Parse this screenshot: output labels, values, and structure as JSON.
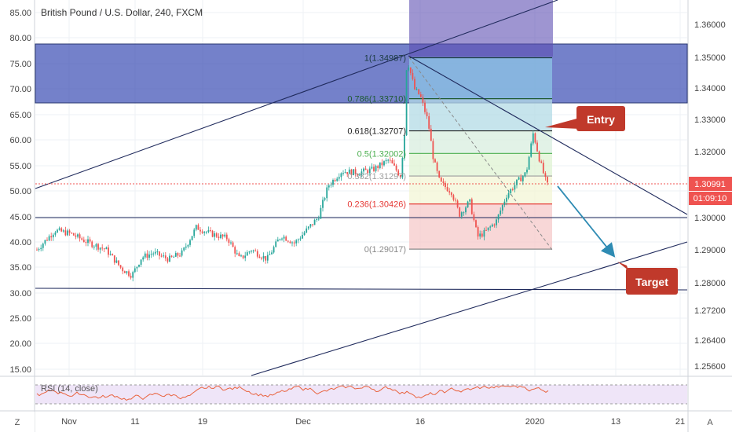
{
  "chart_title": "British Pound / U.S. Dollar, 240, FXCM",
  "chart_data": {
    "type": "candlestick",
    "title": "British Pound / U.S. Dollar, 240, FXCM",
    "ylim": [
      1.25,
      1.368
    ],
    "right_axis_ticks": [
      "1.36000",
      "1.35000",
      "1.34000",
      "1.33000",
      "1.32000",
      "1.30000",
      "1.29000",
      "1.28000",
      "1.27200",
      "1.26400",
      "1.25600"
    ],
    "left_axis_ticks": [
      "85.00",
      "80.00",
      "75.00",
      "70.00",
      "65.00",
      "60.00",
      "55.00",
      "50.00",
      "45.00",
      "40.00",
      "35.00",
      "30.00",
      "25.00",
      "20.00",
      "15.00"
    ],
    "x_axis_ticks": [
      "Nov",
      "11",
      "19",
      "Dec",
      "16",
      "2020",
      "13",
      "21"
    ],
    "last_price": "1.30991",
    "countdown": "01:09:10",
    "fibonacci": [
      {
        "level": "1",
        "price": 1.34987,
        "label": "1(1.34987)",
        "color": "#1a3a40"
      },
      {
        "level": "0.786",
        "price": 1.3371,
        "label": "0.786(1.33710)",
        "color": "#1e5a32"
      },
      {
        "level": "0.618",
        "price": 1.32707,
        "label": "0.618(1.32707)",
        "color": "#222222"
      },
      {
        "level": "0.5",
        "price": 1.32002,
        "label": "0.5(1.32002)",
        "color": "#4caf50"
      },
      {
        "level": "0.382",
        "price": 1.31297,
        "label": "0.382(1.31297)",
        "color": "#9e9e9e"
      },
      {
        "level": "0.236",
        "price": 1.30426,
        "label": "0.236(1.30426)",
        "color": "#e53935"
      },
      {
        "level": "0",
        "price": 1.29017,
        "label": "0(1.29017)",
        "color": "#8a8a8a"
      }
    ],
    "annotations": {
      "entry": "Entry",
      "target": "Target"
    },
    "rsi_label": "RSI (14, close)"
  },
  "bottom_bar": {
    "left_button": "Z",
    "right_button": "A"
  },
  "colors": {
    "up": "#26a69a",
    "down": "#ef5350",
    "zone": "#3f51b5",
    "purple": "#5e4fb3",
    "line": "#1f2a5c",
    "callout": "#c0392b",
    "price_tag": "#ef5350"
  }
}
